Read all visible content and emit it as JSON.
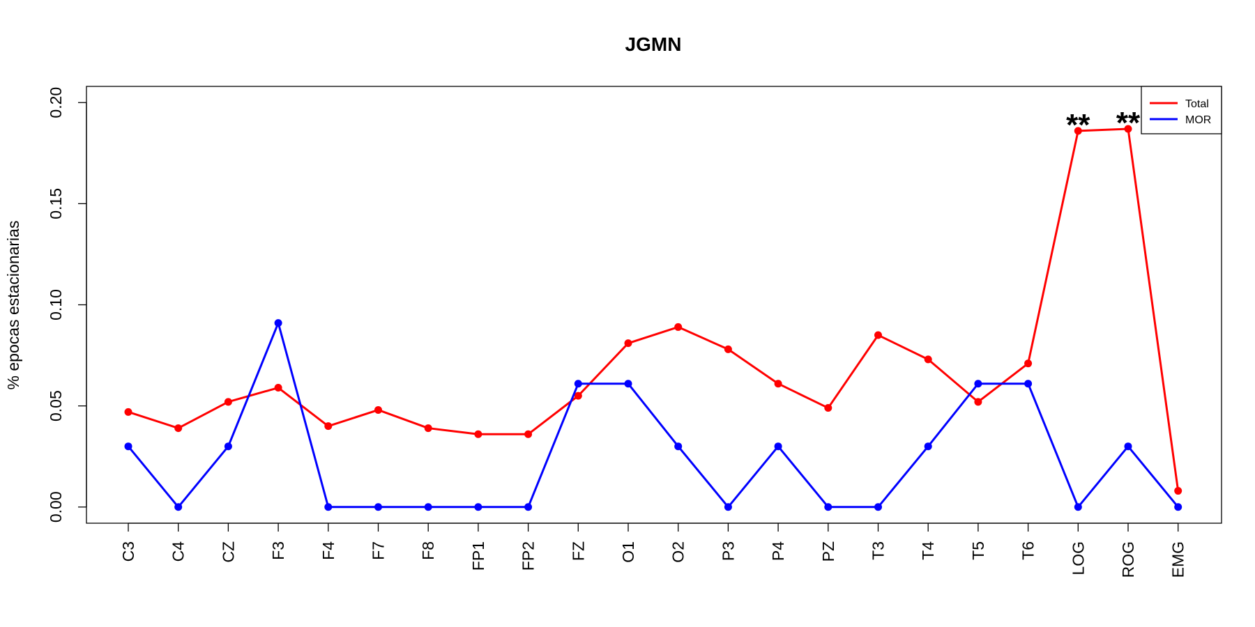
{
  "chart_data": {
    "type": "line",
    "title": "JGMN",
    "xlabel": "",
    "ylabel": "% epocas estacionarias",
    "categories": [
      "C3",
      "C4",
      "CZ",
      "F3",
      "F4",
      "F7",
      "F8",
      "FP1",
      "FP2",
      "FZ",
      "O1",
      "O2",
      "P3",
      "P4",
      "PZ",
      "T3",
      "T4",
      "T5",
      "T6",
      "LOG",
      "ROG",
      "EMG"
    ],
    "ylim": [
      -0.008,
      0.208
    ],
    "yticks": [
      "0.00",
      "0.05",
      "0.10",
      "0.15",
      "0.20"
    ],
    "grid": false,
    "legend": "top-right",
    "series": [
      {
        "name": "Total",
        "color": "#ff0000",
        "values": [
          0.047,
          0.039,
          0.052,
          0.059,
          0.04,
          0.048,
          0.039,
          0.036,
          0.036,
          0.055,
          0.081,
          0.089,
          0.078,
          0.061,
          0.049,
          0.085,
          0.073,
          0.052,
          0.071,
          0.186,
          0.187,
          0.008
        ]
      },
      {
        "name": "MOR",
        "color": "#0000ff",
        "values": [
          0.03,
          0.0,
          0.03,
          0.091,
          0.0,
          0.0,
          0.0,
          0.0,
          0.0,
          0.061,
          0.061,
          0.03,
          0.0,
          0.03,
          0.0,
          0.0,
          0.03,
          0.061,
          0.061,
          0.0,
          0.03,
          0.0
        ]
      }
    ],
    "annotations": [
      {
        "text": "**",
        "category": "LOG"
      },
      {
        "text": "**",
        "category": "ROG"
      }
    ]
  }
}
